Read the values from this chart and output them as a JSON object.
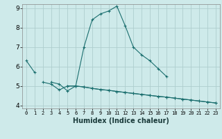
{
  "xlabel": "Humidex (Indice chaleur)",
  "background_color": "#ceeaea",
  "grid_color": "#aecece",
  "line_color": "#1a6e6e",
  "x_values": [
    0,
    1,
    2,
    3,
    4,
    5,
    6,
    7,
    8,
    9,
    10,
    11,
    12,
    13,
    14,
    15,
    16,
    17,
    18,
    19,
    20,
    21,
    22,
    23
  ],
  "series1": [
    6.3,
    5.7,
    null,
    null,
    null,
    null,
    null,
    null,
    null,
    null,
    null,
    null,
    null,
    null,
    null,
    null,
    null,
    null,
    null,
    null,
    null,
    null,
    null,
    null
  ],
  "series2": [
    null,
    null,
    null,
    5.2,
    5.1,
    4.75,
    5.0,
    7.0,
    8.4,
    8.7,
    8.85,
    9.1,
    8.1,
    7.0,
    6.6,
    6.3,
    5.9,
    5.5,
    null,
    null,
    null,
    null,
    null,
    null
  ],
  "series3": [
    null,
    null,
    5.2,
    5.1,
    4.8,
    5.0,
    5.0,
    4.95,
    4.88,
    4.82,
    4.78,
    4.72,
    4.67,
    4.62,
    4.57,
    4.52,
    4.47,
    4.43,
    4.38,
    4.33,
    4.28,
    4.23,
    4.18,
    4.13
  ],
  "series4": [
    null,
    null,
    null,
    null,
    null,
    5.0,
    5.0,
    4.95,
    4.88,
    4.82,
    4.78,
    4.72,
    4.67,
    4.62,
    4.57,
    4.52,
    4.47,
    4.43,
    4.38,
    4.33,
    4.28,
    4.23,
    4.18,
    4.13
  ],
  "ylim": [
    4,
    9
  ],
  "xlim": [
    -0.5,
    23.5
  ],
  "yticks": [
    4,
    5,
    6,
    7,
    8,
    9
  ],
  "xticks": [
    0,
    1,
    2,
    3,
    4,
    5,
    6,
    7,
    8,
    9,
    10,
    11,
    12,
    13,
    14,
    15,
    16,
    17,
    18,
    19,
    20,
    21,
    22,
    23
  ]
}
